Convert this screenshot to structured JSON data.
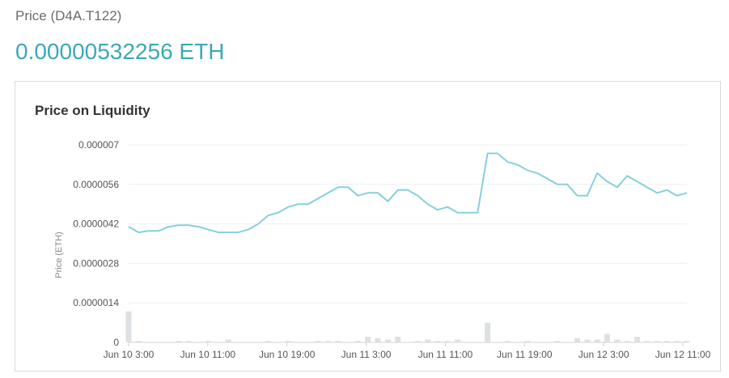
{
  "header": {
    "label": "Price (D4A.T122)",
    "value": "0.00000532256 ETH"
  },
  "card": {
    "title": "Price on Liquidity"
  },
  "chart_data": {
    "type": "line",
    "title": "Price on Liquidity",
    "ylabel": "Price  (ETH)",
    "xlabel": "",
    "ylim": [
      0,
      7e-06
    ],
    "yticks": [
      "0.000007",
      "0.0000056",
      "0.0000042",
      "0.0000028",
      "0.0000014",
      "0"
    ],
    "ytick_values": [
      7e-06,
      5.6e-06,
      4.2e-06,
      2.8e-06,
      1.4e-06,
      0
    ],
    "xticks": [
      "Jun 10 3:00",
      "Jun 10 11:00",
      "Jun 10 19:00",
      "Jun 11 3:00",
      "Jun 11 11:00",
      "Jun 11 19:00",
      "Jun 12 3:00",
      "Jun 12 11:00"
    ],
    "grid": true,
    "line_color": "#86d0dc",
    "bar_color": "#dde1e3",
    "series": [
      {
        "values": [
          4.1e-06,
          3.9e-06,
          3.95e-06,
          3.95e-06,
          4.1e-06,
          4.15e-06,
          4.15e-06,
          4.1e-06,
          4e-06,
          3.9e-06,
          3.9e-06,
          3.9e-06,
          4e-06,
          4.2e-06,
          4.5e-06,
          4.6e-06,
          4.8e-06,
          4.9e-06,
          4.9e-06,
          5.1e-06,
          5.3e-06,
          5.5e-06,
          5.5e-06,
          5.2e-06,
          5.3e-06,
          5.3e-06,
          5e-06,
          5.4e-06,
          5.4e-06,
          5.2e-06,
          4.9e-06,
          4.7e-06,
          4.8e-06,
          4.6e-06,
          4.6e-06,
          4.6e-06,
          6.7e-06,
          6.7e-06,
          6.4e-06,
          6.3e-06,
          6.1e-06,
          6e-06,
          5.8e-06,
          5.6e-06,
          5.6e-06,
          5.2e-06,
          5.2e-06,
          6e-06,
          5.7e-06,
          5.5e-06,
          5.9e-06,
          5.7e-06,
          5.5e-06,
          5.3e-06,
          5.4e-06,
          5.2e-06,
          5.3e-06
        ]
      },
      {
        "values": [
          1.1e-06,
          5e-08,
          0,
          0,
          0,
          5e-08,
          5e-08,
          0,
          5e-08,
          0,
          1e-07,
          0,
          0,
          0,
          5e-08,
          0,
          5e-08,
          0,
          0,
          5e-08,
          5e-08,
          5e-08,
          0,
          5e-08,
          2e-07,
          1.5e-07,
          1e-07,
          2e-07,
          0,
          5e-08,
          1e-07,
          5e-08,
          5e-08,
          1e-07,
          0,
          0,
          7e-07,
          0,
          5e-08,
          0,
          5e-08,
          0,
          0,
          5e-08,
          0,
          1.5e-07,
          1e-07,
          1e-07,
          3e-07,
          1e-07,
          5e-08,
          2e-07,
          5e-08,
          5e-08,
          5e-08,
          5e-08,
          5e-08
        ]
      }
    ]
  }
}
